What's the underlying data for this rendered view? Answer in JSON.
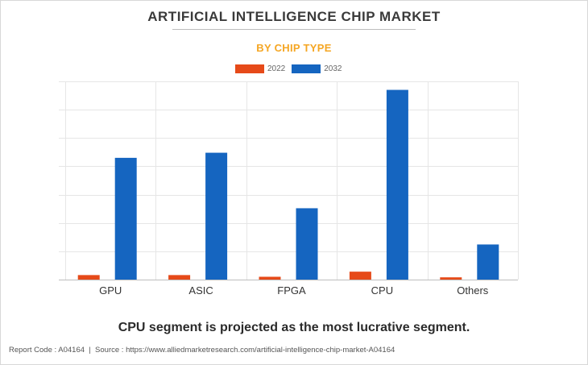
{
  "chart_data": {
    "type": "bar",
    "title": "ARTIFICIAL INTELLIGENCE CHIP MARKET",
    "subtitle": "BY CHIP TYPE",
    "categories": [
      "GPU",
      "ASIC",
      "FPGA",
      "CPU",
      "Others"
    ],
    "series": [
      {
        "name": "2022",
        "color": "#e64a19",
        "values": [
          0.8,
          0.8,
          0.5,
          1.4,
          0.4
        ]
      },
      {
        "name": "2032",
        "color": "#1565c0",
        "values": [
          21.5,
          22.4,
          12.6,
          33.5,
          6.2
        ]
      }
    ],
    "ylim": [
      0,
      35
    ],
    "y_grid_step": 5,
    "show_y_tick_labels": false,
    "grid": true,
    "legend_position": "top-center",
    "xlabel": "",
    "ylabel": ""
  },
  "caption": "CPU segment is projected as the most lucrative segment.",
  "footer": {
    "report_code_label": "Report Code : A04164",
    "separator": "|",
    "source_label": "Source : https://www.alliedmarketresearch.com/artificial-intelligence-chip-market-A04164"
  }
}
